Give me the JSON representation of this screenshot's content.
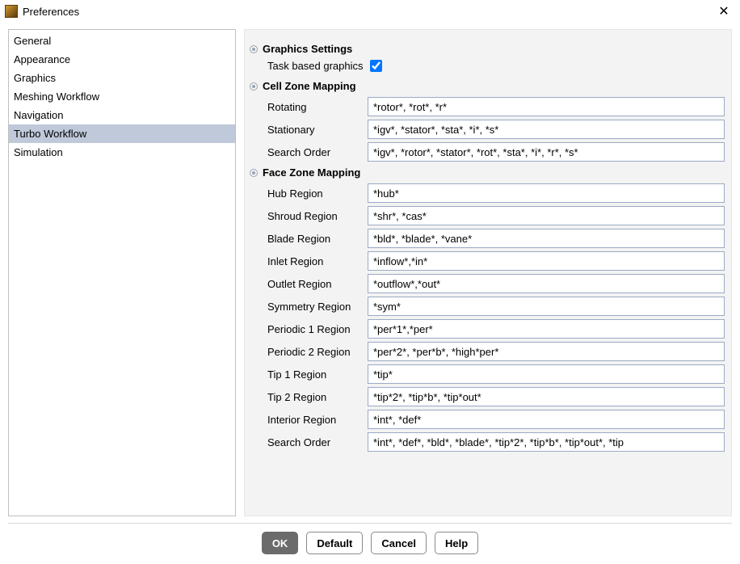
{
  "window": {
    "title": "Preferences"
  },
  "sidebar": {
    "items": [
      {
        "label": "General",
        "selected": false
      },
      {
        "label": "Appearance",
        "selected": false
      },
      {
        "label": "Graphics",
        "selected": false
      },
      {
        "label": "Meshing Workflow",
        "selected": false
      },
      {
        "label": "Navigation",
        "selected": false
      },
      {
        "label": "Turbo Workflow",
        "selected": true
      },
      {
        "label": "Simulation",
        "selected": false
      }
    ]
  },
  "content": {
    "graphics_settings": {
      "title": "Graphics Settings",
      "task_based_graphics_label": "Task based graphics",
      "task_based_graphics_checked": true
    },
    "cell_zone_mapping": {
      "title": "Cell Zone Mapping",
      "fields": [
        {
          "label": "Rotating",
          "value": "*rotor*, *rot*, *r*"
        },
        {
          "label": "Stationary",
          "value": "*igv*, *stator*, *sta*, *i*, *s*"
        },
        {
          "label": "Search Order",
          "value": "*igv*, *rotor*, *stator*, *rot*, *sta*, *i*, *r*, *s*"
        }
      ]
    },
    "face_zone_mapping": {
      "title": "Face Zone Mapping",
      "fields": [
        {
          "label": "Hub Region",
          "value": "*hub*"
        },
        {
          "label": "Shroud Region",
          "value": "*shr*, *cas*"
        },
        {
          "label": "Blade Region",
          "value": "*bld*, *blade*, *vane*"
        },
        {
          "label": "Inlet Region",
          "value": "*inflow*,*in*"
        },
        {
          "label": "Outlet Region",
          "value": "*outflow*,*out*"
        },
        {
          "label": "Symmetry Region",
          "value": "*sym*"
        },
        {
          "label": "Periodic 1 Region",
          "value": "*per*1*,*per*"
        },
        {
          "label": "Periodic 2 Region",
          "value": "*per*2*, *per*b*, *high*per*"
        },
        {
          "label": "Tip 1 Region",
          "value": "*tip*"
        },
        {
          "label": "Tip 2 Region",
          "value": "*tip*2*, *tip*b*, *tip*out*"
        },
        {
          "label": "Interior Region",
          "value": "*int*, *def*"
        },
        {
          "label": "Search Order",
          "value": "*int*, *def*, *bld*, *blade*, *tip*2*, *tip*b*, *tip*out*, *tip"
        }
      ]
    }
  },
  "footer": {
    "ok": "OK",
    "default": "Default",
    "cancel": "Cancel",
    "help": "Help"
  }
}
